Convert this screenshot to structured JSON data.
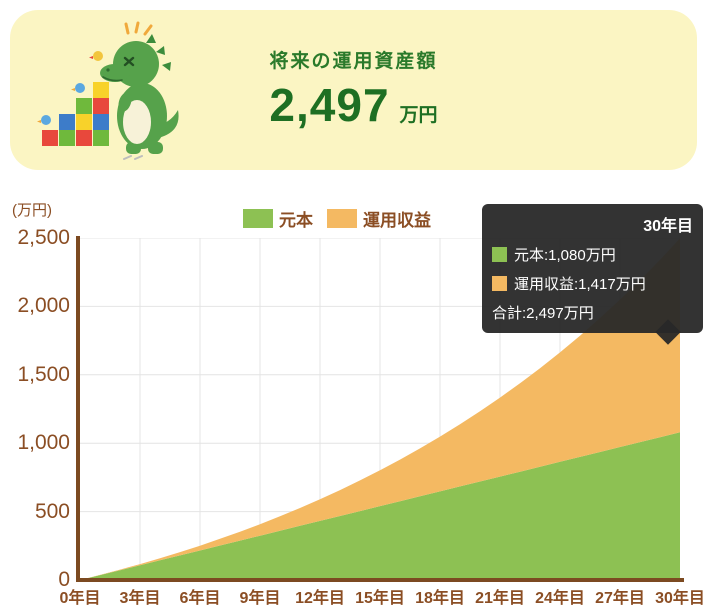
{
  "banner": {
    "title": "将来の運用資産額",
    "amount": "2,497",
    "unit": "万円"
  },
  "chart": {
    "unit_label": "(万円)",
    "legend": [
      {
        "label": "元本",
        "color": "#8DC153"
      },
      {
        "label": "運用収益",
        "color": "#F4B962"
      }
    ],
    "tooltip": {
      "title": "30年目",
      "rows": [
        {
          "swatch": "#8DC153",
          "text": "元本:1,080万円"
        },
        {
          "swatch": "#F4B962",
          "text": "運用収益:1,417万円"
        },
        {
          "swatch": null,
          "text": "合計:2,497万円"
        }
      ]
    }
  },
  "chart_data": {
    "type": "area",
    "stacked": true,
    "title": "",
    "xlabel": "",
    "ylabel": "(万円)",
    "ylim": [
      0,
      2500
    ],
    "grid": true,
    "legend_position": "top",
    "axis_color": "#7C4A21",
    "tick_label_color": "#8B4E24",
    "grid_color": "#E4E4E4",
    "x": [
      0,
      1,
      2,
      3,
      4,
      5,
      6,
      7,
      8,
      9,
      10,
      11,
      12,
      13,
      14,
      15,
      16,
      17,
      18,
      19,
      20,
      21,
      22,
      23,
      24,
      25,
      26,
      27,
      28,
      29,
      30
    ],
    "series": [
      {
        "name": "元本",
        "color": "#8DC153",
        "values": [
          0,
          36,
          72,
          108,
          144,
          180,
          216,
          252,
          288,
          324,
          360,
          396,
          432,
          468,
          504,
          540,
          576,
          612,
          648,
          684,
          720,
          756,
          792,
          828,
          864,
          900,
          936,
          972,
          1008,
          1044,
          1080
        ]
      },
      {
        "name": "運用収益",
        "color": "#F4B962",
        "values": [
          0,
          1,
          4,
          8,
          15,
          24,
          35,
          49,
          65,
          84,
          106,
          130,
          158,
          189,
          224,
          262,
          304,
          350,
          400,
          454,
          513,
          577,
          646,
          720,
          800,
          886,
          979,
          1078,
          1183,
          1296,
          1417
        ]
      }
    ],
    "y_ticks": [
      0,
      500,
      1000,
      1500,
      2000,
      2500
    ],
    "y_tick_labels": [
      "0",
      "500",
      "1,000",
      "1,500",
      "2,000",
      "2,500"
    ],
    "x_ticks": [
      {
        "year": 0,
        "label": "0年目"
      },
      {
        "year": 3,
        "label": "3年目"
      },
      {
        "year": 6,
        "label": "6年目"
      },
      {
        "year": 9,
        "label": "9年目"
      },
      {
        "year": 12,
        "label": "12年目"
      },
      {
        "year": 15,
        "label": "15年目"
      },
      {
        "year": 18,
        "label": "18年目"
      },
      {
        "year": 21,
        "label": "21年目"
      },
      {
        "year": 24,
        "label": "24年目"
      },
      {
        "year": 27,
        "label": "27年目"
      },
      {
        "year": 30,
        "label": "30年目"
      }
    ]
  }
}
